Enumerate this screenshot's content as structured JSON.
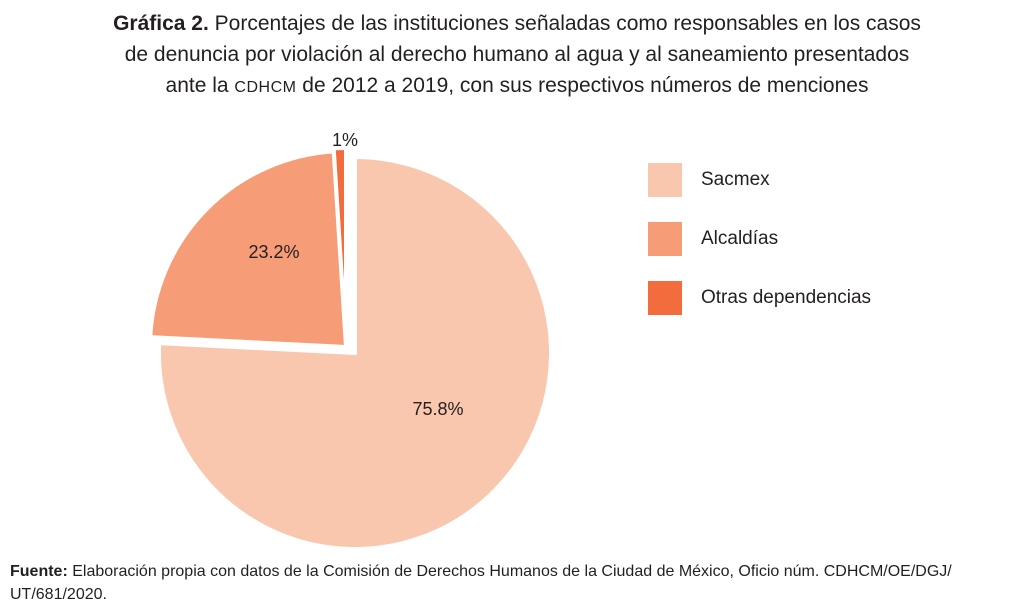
{
  "title": {
    "label": "Gráfica 2.",
    "line1": "Porcentajes de las instituciones señaladas como responsables en los casos",
    "line2": "de denuncia por violación al derecho humano al agua y al saneamiento presentados",
    "line3_pre": "ante la ",
    "line3_org": "CDHCM",
    "line3_post": " de 2012 a 2019, con sus respectivos números de menciones"
  },
  "chart_data": {
    "type": "pie",
    "exploded": true,
    "start": "top, clockwise",
    "slices": [
      {
        "label": "Sacmex",
        "value": 75.8,
        "display": "75.8%",
        "color": "#f9c6ae"
      },
      {
        "label": "Alcaldías",
        "value": 23.2,
        "display": "23.2%",
        "color": "#f69d78"
      },
      {
        "label": "Otras dependencias",
        "value": 1.0,
        "display": "1%",
        "color": "#f26c3d"
      }
    ],
    "legend_position": "right"
  },
  "source": {
    "label": "Fuente:",
    "text": " Elaboración propia con datos de la Comisión de Derechos Humanos de la Ciudad de México, Oficio núm. CDHCM/OE/DGJ/",
    "line2": "UT/681/2020."
  }
}
